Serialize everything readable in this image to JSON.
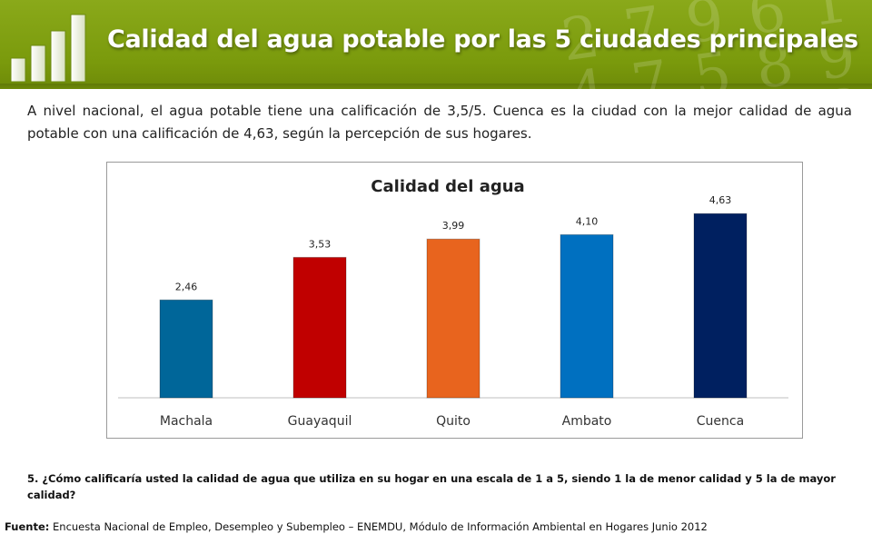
{
  "header": {
    "title": "Calidad del agua potable por las 5 ciudades principales",
    "background_color": "#7a9a0c",
    "logo_icon": "bar-chart-icon",
    "decorative_digits": "2 7 9 6 1 4 7 5 8 9 6 3 0 2 8 5"
  },
  "intro": {
    "text": "A nivel nacional, el agua potable tiene una calificación de 3,5/5. Cuenca es la ciudad con la mejor calidad de agua potable con una calificación de 4,63, según la percepción de sus hogares."
  },
  "chart_data": {
    "type": "bar",
    "title": "Calidad del agua",
    "categories": [
      "Machala",
      "Guayaquil",
      "Quito",
      "Ambato",
      "Cuenca"
    ],
    "values": [
      2.46,
      3.53,
      3.99,
      4.1,
      4.63
    ],
    "data_labels": [
      "2,46",
      "3,53",
      "3,99",
      "4,10",
      "4,63"
    ],
    "colors": [
      "#006699",
      "#c00000",
      "#e8641e",
      "#0070c0",
      "#002060"
    ],
    "xlabel": "",
    "ylabel": "",
    "ylim": [
      0,
      5
    ],
    "grid": false,
    "legend": "none"
  },
  "footer": {
    "question": "5. ¿Cómo calificaría usted la calidad de agua que utiliza en su hogar en una escala de 1 a 5, siendo 1 la de menor calidad y 5 la de mayor calidad?",
    "source_label": "Fuente:",
    "source_text": " Encuesta Nacional de Empleo, Desempleo y Subempleo – ENEMDU, Módulo de Información Ambiental en Hogares Junio 2012"
  }
}
